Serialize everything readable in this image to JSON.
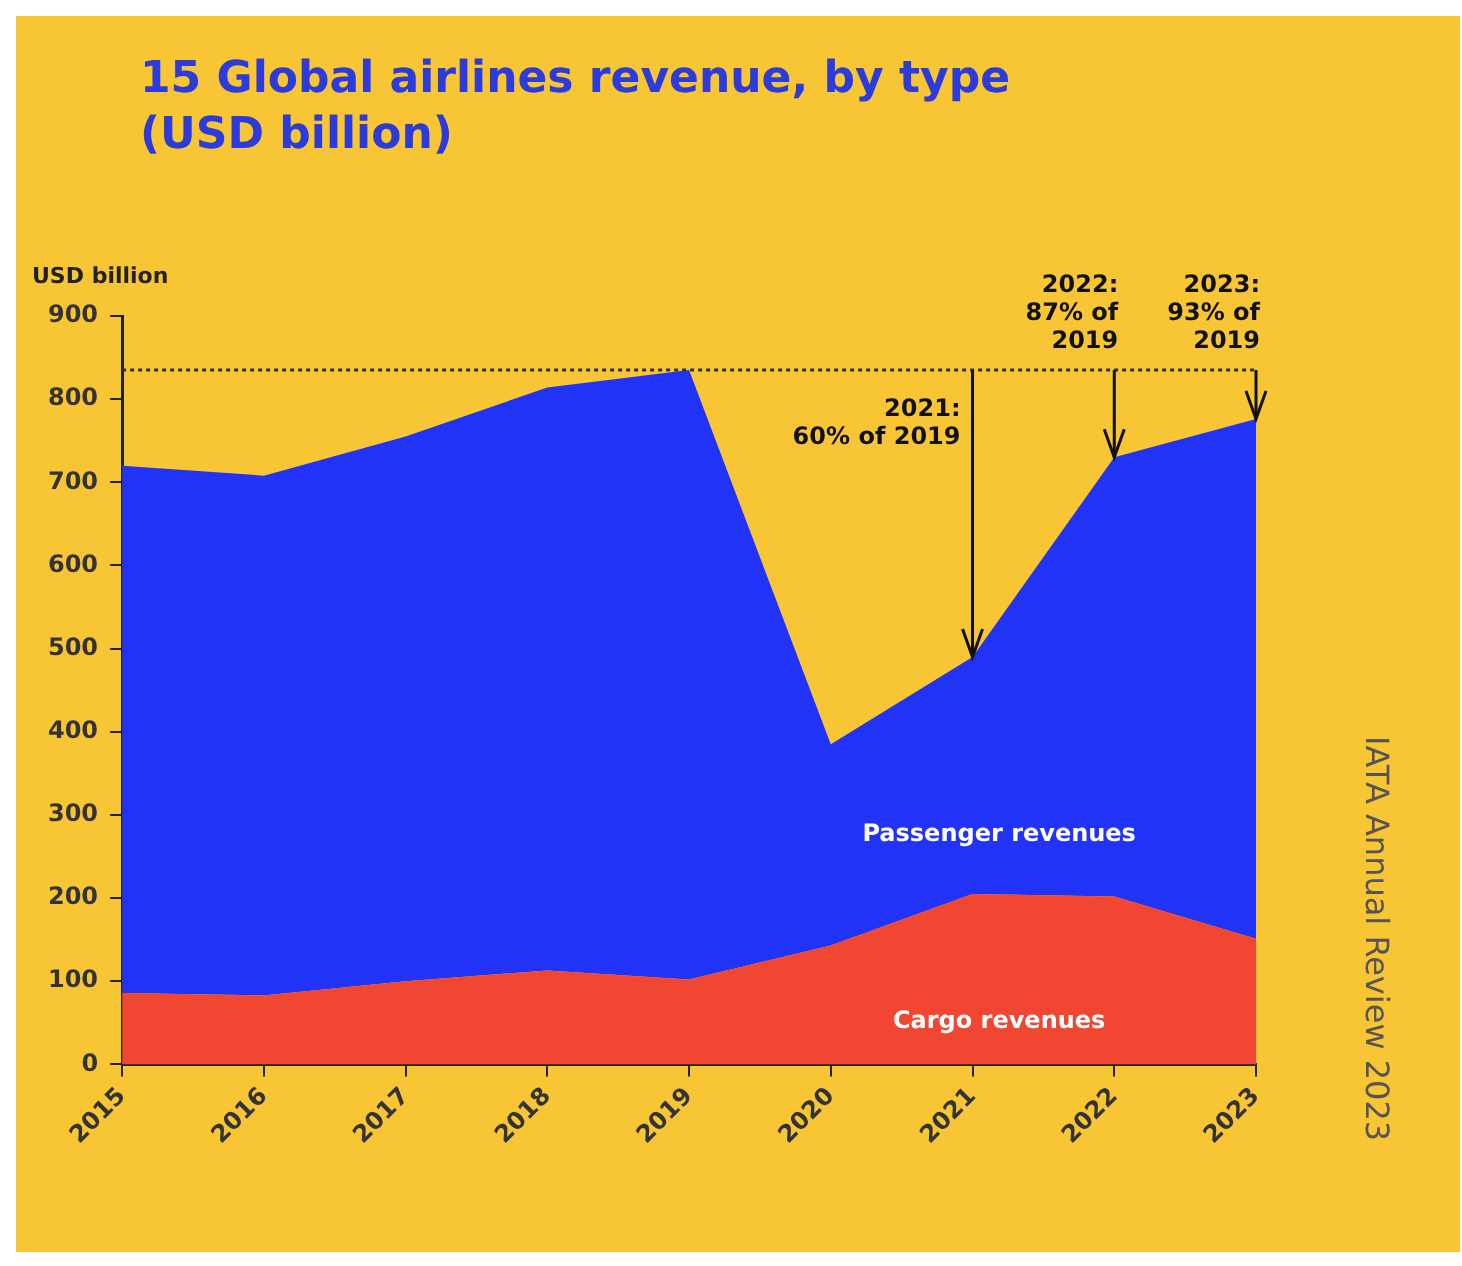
{
  "chart_data": {
    "type": "area",
    "stacked": true,
    "title": "15 Global airlines revenue, by type (USD billion)",
    "ylabel": "USD billion",
    "categories": [
      "2015",
      "2016",
      "2017",
      "2018",
      "2019",
      "2020",
      "2021",
      "2022",
      "2023"
    ],
    "series": [
      {
        "name": "Cargo revenues",
        "color": "#f04632",
        "values": [
          86,
          83,
          100,
          113,
          102,
          143,
          205,
          202,
          151
        ]
      },
      {
        "name": "Passenger revenues",
        "color": "#2233f8",
        "values": [
          634,
          625,
          655,
          701,
          733,
          242,
          285,
          528,
          625
        ]
      }
    ],
    "ylim": [
      0,
      900
    ],
    "yticks": [
      0,
      100,
      200,
      300,
      400,
      500,
      600,
      700,
      800,
      900
    ],
    "grid": false,
    "legend": false,
    "ref_lines": [
      {
        "axis": "y",
        "value": 835,
        "line_style": "dotted",
        "color": "#333333"
      }
    ],
    "annotations": [
      {
        "text": "2021:\n60% of 2019",
        "x": "2021",
        "y": 490
      },
      {
        "text": "2022:\n87% of\n2019",
        "x": "2022",
        "y": 730
      },
      {
        "text": "2023:\n93% of\n2019",
        "x": "2023",
        "y": 776
      },
      "IATA Annual Review 2023"
    ]
  }
}
